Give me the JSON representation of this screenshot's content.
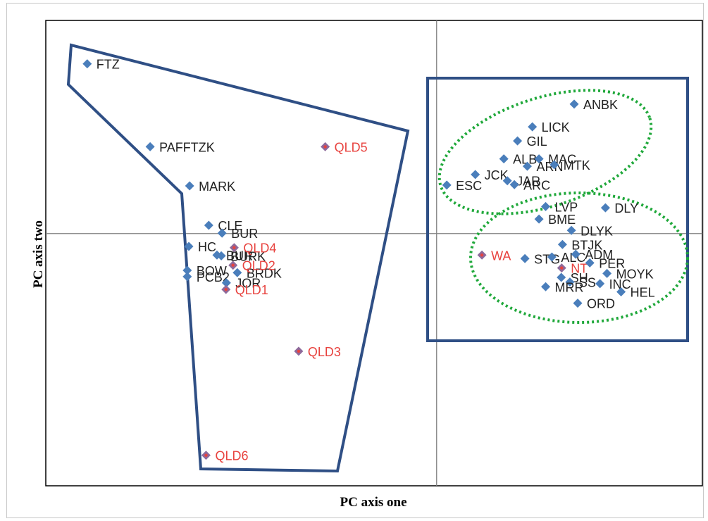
{
  "chart_data": {
    "type": "scatter",
    "title": "",
    "xlabel": "PC axis one",
    "ylabel": "PC axis two",
    "xlim": [
      -1.0,
      0.68
    ],
    "ylim": [
      -0.645,
      0.545
    ],
    "grid": false,
    "reference_lines": {
      "x": 0,
      "y": 0
    },
    "colors": {
      "marker": "#4a7ebb",
      "reference_marker": "#8e6a9b",
      "reference_label": "#e8433f",
      "label": "#222222",
      "hull": "#2f4f85",
      "ellipse": "#1fa83a",
      "axis": "#808080"
    },
    "points": [
      {
        "label": "FTZ",
        "x": -0.894,
        "y": 0.434,
        "group": "sample"
      },
      {
        "label": "PAFFTZK",
        "x": -0.733,
        "y": 0.222,
        "group": "sample"
      },
      {
        "label": "MARK",
        "x": -0.632,
        "y": 0.122,
        "group": "sample"
      },
      {
        "label": "CLE",
        "x": -0.583,
        "y": 0.021,
        "group": "sample"
      },
      {
        "label": "BUR",
        "x": -0.549,
        "y": 0.001,
        "group": "sample"
      },
      {
        "label": "HC",
        "x": -0.634,
        "y": -0.033,
        "group": "sample"
      },
      {
        "label": "BUR",
        "x": -0.562,
        "y": -0.055,
        "group": "sample"
      },
      {
        "label": "BURK",
        "x": -0.551,
        "y": -0.057,
        "group": "sample"
      },
      {
        "label": "BOW",
        "x": -0.638,
        "y": -0.094,
        "group": "sample"
      },
      {
        "label": "PCB2",
        "x": -0.638,
        "y": -0.11,
        "group": "sample"
      },
      {
        "label": "JOR",
        "x": -0.538,
        "y": -0.126,
        "group": "sample"
      },
      {
        "label": "BRDK",
        "x": -0.51,
        "y": -0.1,
        "group": "sample"
      },
      {
        "label": "QLD4",
        "x": -0.518,
        "y": -0.036,
        "group": "reference"
      },
      {
        "label": "QLD2",
        "x": -0.521,
        "y": -0.081,
        "group": "reference"
      },
      {
        "label": "QLD1",
        "x": -0.539,
        "y": -0.143,
        "group": "reference"
      },
      {
        "label": "QLD5",
        "x": -0.285,
        "y": 0.222,
        "group": "reference"
      },
      {
        "label": "QLD3",
        "x": -0.353,
        "y": -0.301,
        "group": "reference"
      },
      {
        "label": "QLD6",
        "x": -0.59,
        "y": -0.567,
        "group": "reference"
      },
      {
        "label": "ANBK",
        "x": 0.352,
        "y": 0.331,
        "group": "sample"
      },
      {
        "label": "LICK",
        "x": 0.245,
        "y": 0.273,
        "group": "sample"
      },
      {
        "label": "GIL",
        "x": 0.207,
        "y": 0.237,
        "group": "sample"
      },
      {
        "label": "ALB",
        "x": 0.172,
        "y": 0.191,
        "group": "sample"
      },
      {
        "label": "MAC",
        "x": 0.262,
        "y": 0.191,
        "group": "sample"
      },
      {
        "label": "ARN",
        "x": 0.232,
        "y": 0.172,
        "group": "sample"
      },
      {
        "label": "MTK",
        "x": 0.301,
        "y": 0.176,
        "group": "sample"
      },
      {
        "label": "JCK",
        "x": 0.099,
        "y": 0.151,
        "group": "sample"
      },
      {
        "label": "JAR",
        "x": 0.181,
        "y": 0.135,
        "group": "sample"
      },
      {
        "label": "ARC",
        "x": 0.199,
        "y": 0.125,
        "group": "sample"
      },
      {
        "label": "ESC",
        "x": 0.026,
        "y": 0.124,
        "group": "sample"
      },
      {
        "label": "LVP",
        "x": 0.279,
        "y": 0.069,
        "group": "sample"
      },
      {
        "label": "DLY",
        "x": 0.432,
        "y": 0.066,
        "group": "sample"
      },
      {
        "label": "BME",
        "x": 0.262,
        "y": 0.037,
        "group": "sample"
      },
      {
        "label": "DLYK",
        "x": 0.345,
        "y": 0.008,
        "group": "sample"
      },
      {
        "label": "BTJK",
        "x": 0.322,
        "y": -0.028,
        "group": "sample"
      },
      {
        "label": "WA",
        "x": 0.116,
        "y": -0.055,
        "group": "reference"
      },
      {
        "label": "STG",
        "x": 0.226,
        "y": -0.064,
        "group": "sample"
      },
      {
        "label": "ALC",
        "x": 0.295,
        "y": -0.06,
        "group": "sample"
      },
      {
        "label": "ADM",
        "x": 0.356,
        "y": -0.053,
        "group": "sample"
      },
      {
        "label": "NT",
        "x": 0.32,
        "y": -0.088,
        "group": "reference"
      },
      {
        "label": "PER",
        "x": 0.392,
        "y": -0.075,
        "group": "sample"
      },
      {
        "label": "MOYK",
        "x": 0.436,
        "y": -0.102,
        "group": "sample"
      },
      {
        "label": "SH",
        "x": 0.319,
        "y": -0.112,
        "group": "sample"
      },
      {
        "label": "SS",
        "x": 0.341,
        "y": -0.124,
        "group": "sample"
      },
      {
        "label": "INC",
        "x": 0.418,
        "y": -0.128,
        "group": "sample"
      },
      {
        "label": "MRR",
        "x": 0.279,
        "y": -0.136,
        "group": "sample"
      },
      {
        "label": "HEL",
        "x": 0.472,
        "y": -0.149,
        "group": "sample"
      },
      {
        "label": "ORD",
        "x": 0.361,
        "y": -0.178,
        "group": "sample"
      }
    ]
  }
}
